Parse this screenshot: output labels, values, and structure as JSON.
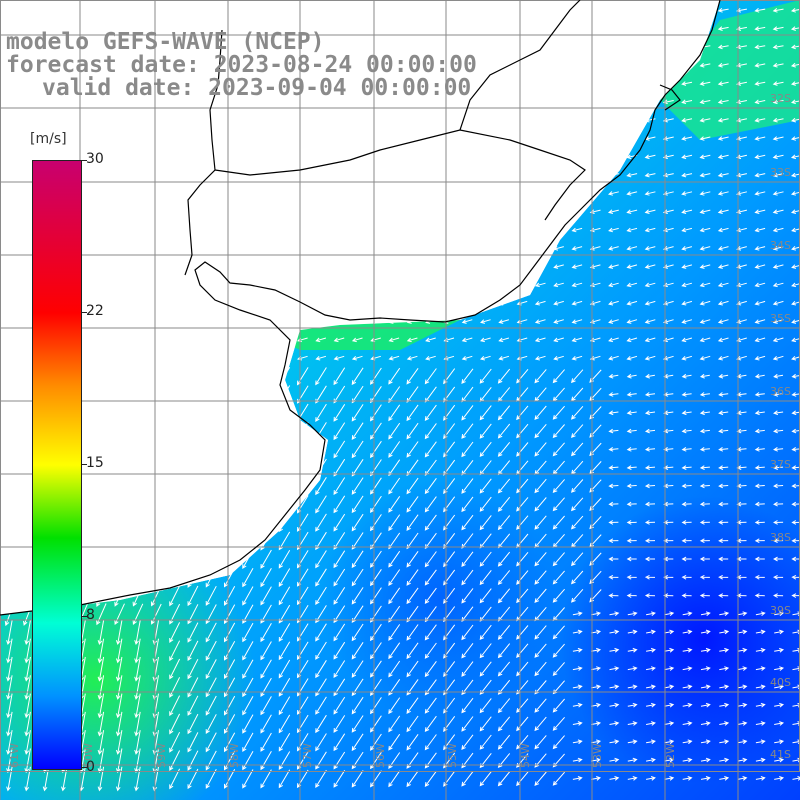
{
  "title": {
    "line1": "modelo GEFS-WAVE (NCEP)",
    "line2": "forecast date: 2023-08-24 00:00:00",
    "line3": "valid date: 2023-09-04 00:00:00"
  },
  "colorbar": {
    "unit": "[m/s]",
    "ticks": [
      "30",
      "22",
      "15",
      "8",
      "0"
    ],
    "tick_values": [
      30,
      22,
      15,
      8,
      0
    ],
    "range": [
      0,
      30
    ]
  },
  "lat_labels": [
    "32S",
    "33S",
    "34S",
    "35S",
    "36S",
    "37S",
    "38S",
    "39S",
    "40S",
    "41S"
  ],
  "lon_labels": [
    "61W",
    "60W",
    "59W",
    "58W",
    "57W",
    "56W",
    "55W",
    "54W",
    "53W",
    "52W"
  ],
  "colors": {
    "land": "#ffffff",
    "coast": "#000000",
    "grid": "#7a7a7a",
    "arrows": "#ffffff"
  }
}
